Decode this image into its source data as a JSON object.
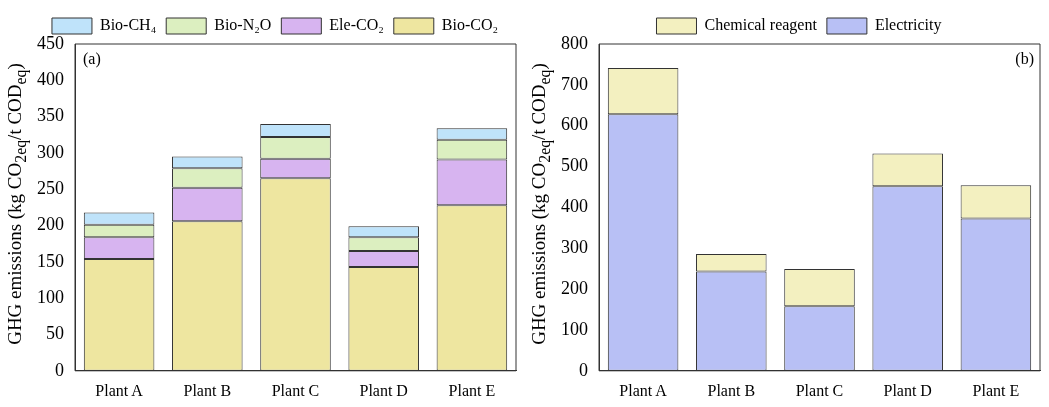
{
  "chart_data": [
    {
      "type": "bar",
      "stacked": true,
      "ylabel": "GHG emissions (kg CO$_{2eq}$/t COD$_{eq}$)",
      "annotations": [
        "(a)"
      ],
      "categories": [
        "Plant A",
        "Plant B",
        "Plant C",
        "Plant D",
        "Plant E"
      ],
      "ylim": [
        0,
        450
      ],
      "yticks": [
        0,
        50,
        100,
        150,
        200,
        250,
        300,
        350,
        400,
        450
      ],
      "grid": false,
      "legend": "top",
      "series": [
        {
          "name": "Bio-CO₂",
          "color": "#eee6a0",
          "values": [
            154,
            206,
            265,
            143,
            228
          ]
        },
        {
          "name": "Ele-CO₂",
          "color": "#d7b4f0",
          "values": [
            30,
            46,
            27,
            22,
            63
          ]
        },
        {
          "name": "Bio-N₂O",
          "color": "#dcefc0",
          "values": [
            17,
            27,
            30,
            19,
            27
          ]
        },
        {
          "name": "Bio-CH₄",
          "color": "#bfe3fa",
          "values": [
            17,
            16,
            18,
            15,
            16
          ]
        }
      ]
    },
    {
      "type": "bar",
      "stacked": true,
      "ylabel": "GHG emissions (kg CO$_{2eq}$/t COD$_{eq}$)",
      "annotations": [
        "(b)"
      ],
      "categories": [
        "Plant A",
        "Plant B",
        "Plant C",
        "Plant D",
        "Plant E"
      ],
      "ylim": [
        0,
        800
      ],
      "yticks": [
        0,
        100,
        200,
        300,
        400,
        500,
        600,
        700,
        800
      ],
      "grid": false,
      "legend": "top",
      "series": [
        {
          "name": "Electricity",
          "color": "#b8c0f5",
          "values": [
            628,
            243,
            158,
            452,
            373
          ]
        },
        {
          "name": "Chemical reagent",
          "color": "#f3f0c0",
          "values": [
            113,
            43,
            91,
            80,
            81
          ]
        }
      ]
    }
  ]
}
